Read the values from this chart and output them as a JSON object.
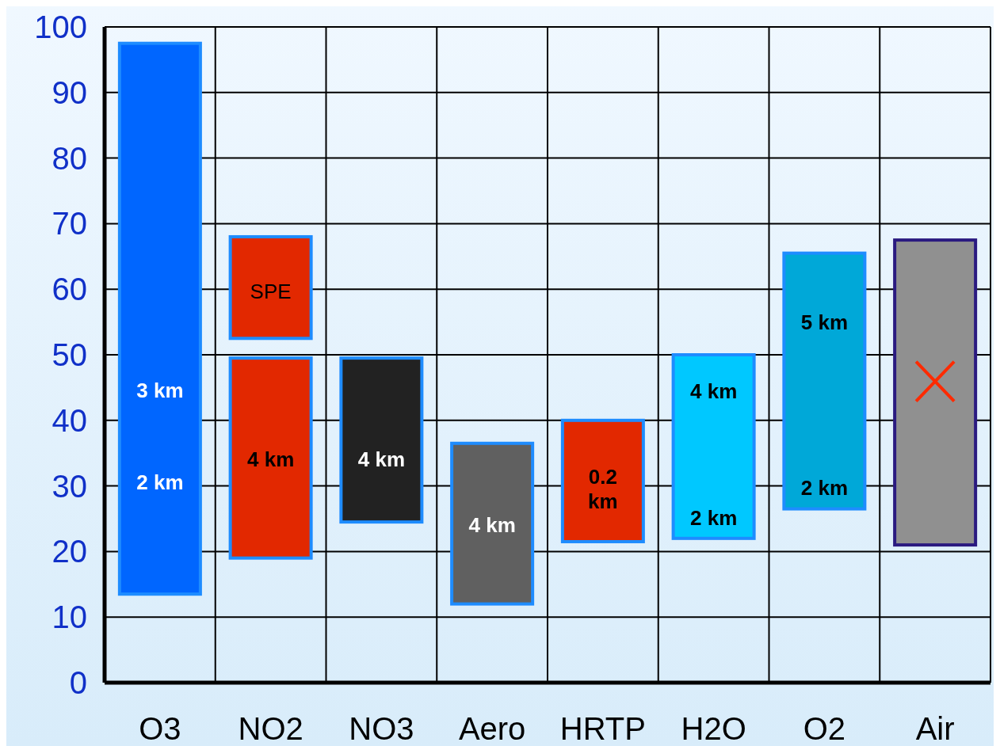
{
  "chart_data": {
    "type": "bar",
    "categories": [
      "O3",
      "NO2",
      "NO3",
      "Aero",
      "HRTP",
      "H2O",
      "O2",
      "Air"
    ],
    "series": [
      {
        "base": [
          13.5,
          19,
          24.5,
          12,
          21.5,
          22,
          26.5,
          21
        ],
        "values": [
          84,
          30.5,
          25,
          24.5,
          18.5,
          28,
          39,
          46.5
        ],
        "colors": [
          "#0066ff",
          "#e22800",
          "#222222",
          "#606060",
          "#e22800",
          "#00c8ff",
          "#00a8d8",
          "#909090"
        ]
      },
      {
        "base": [
          null,
          52.5,
          null,
          null,
          null,
          null,
          null,
          null
        ],
        "values": [
          null,
          15.5,
          null,
          null,
          null,
          null,
          null,
          null
        ],
        "colors": [
          null,
          "#e22800",
          null,
          null,
          null,
          null,
          null,
          null
        ]
      }
    ],
    "ylim": [
      0,
      100
    ],
    "yticks": [
      0,
      10,
      20,
      30,
      40,
      50,
      60,
      70,
      80,
      90,
      100
    ],
    "grid": true,
    "annotations": [
      "3 km",
      "2 km",
      "SPE",
      "4 km",
      "4 km",
      "4 km",
      "0.2 km",
      "4 km",
      "2 km",
      "5 km",
      "2 km"
    ]
  }
}
